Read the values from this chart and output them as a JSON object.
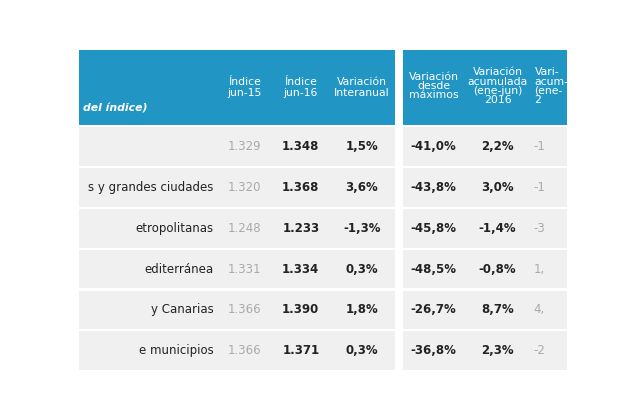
{
  "header_bg": "#2196C4",
  "header_text_color": "#ffffff",
  "row_bg": "#f0f0f0",
  "row_bg_white": "#ffffff",
  "text_color_dark": "#222222",
  "text_color_gray": "#aaaaaa",
  "bg_color": "#ffffff",
  "gap_color": "#ffffff",
  "rows": [
    {
      "label": "",
      "indice_jun15": "1.329",
      "indice_jun16": "1.348",
      "var_interanual": "1,5%",
      "var_maximos": "-41,0%",
      "var_acum_2016": "2,2%",
      "var_acum_2015": "-1"
    },
    {
      "label": "s y grandes ciudades",
      "indice_jun15": "1.320",
      "indice_jun16": "1.368",
      "var_interanual": "3,6%",
      "var_maximos": "-43,8%",
      "var_acum_2016": "3,0%",
      "var_acum_2015": "-1"
    },
    {
      "label": "etropolitanas",
      "indice_jun15": "1.248",
      "indice_jun16": "1.233",
      "var_interanual": "-1,3%",
      "var_maximos": "-45,8%",
      "var_acum_2016": "-1,4%",
      "var_acum_2015": "-3"
    },
    {
      "label": "editerránea",
      "indice_jun15": "1.331",
      "indice_jun16": "1.334",
      "var_interanual": "0,3%",
      "var_maximos": "-48,5%",
      "var_acum_2016": "-0,8%",
      "var_acum_2015": "1,"
    },
    {
      "label": "y Canarias",
      "indice_jun15": "1.366",
      "indice_jun16": "1.390",
      "var_interanual": "1,8%",
      "var_maximos": "-26,7%",
      "var_acum_2016": "8,7%",
      "var_acum_2015": "4,"
    },
    {
      "label": "e municipios",
      "indice_jun15": "1.366",
      "indice_jun16": "1.371",
      "var_interanual": "0,3%",
      "var_maximos": "-36,8%",
      "var_acum_2016": "2,3%",
      "var_acum_2015": "-2"
    }
  ]
}
